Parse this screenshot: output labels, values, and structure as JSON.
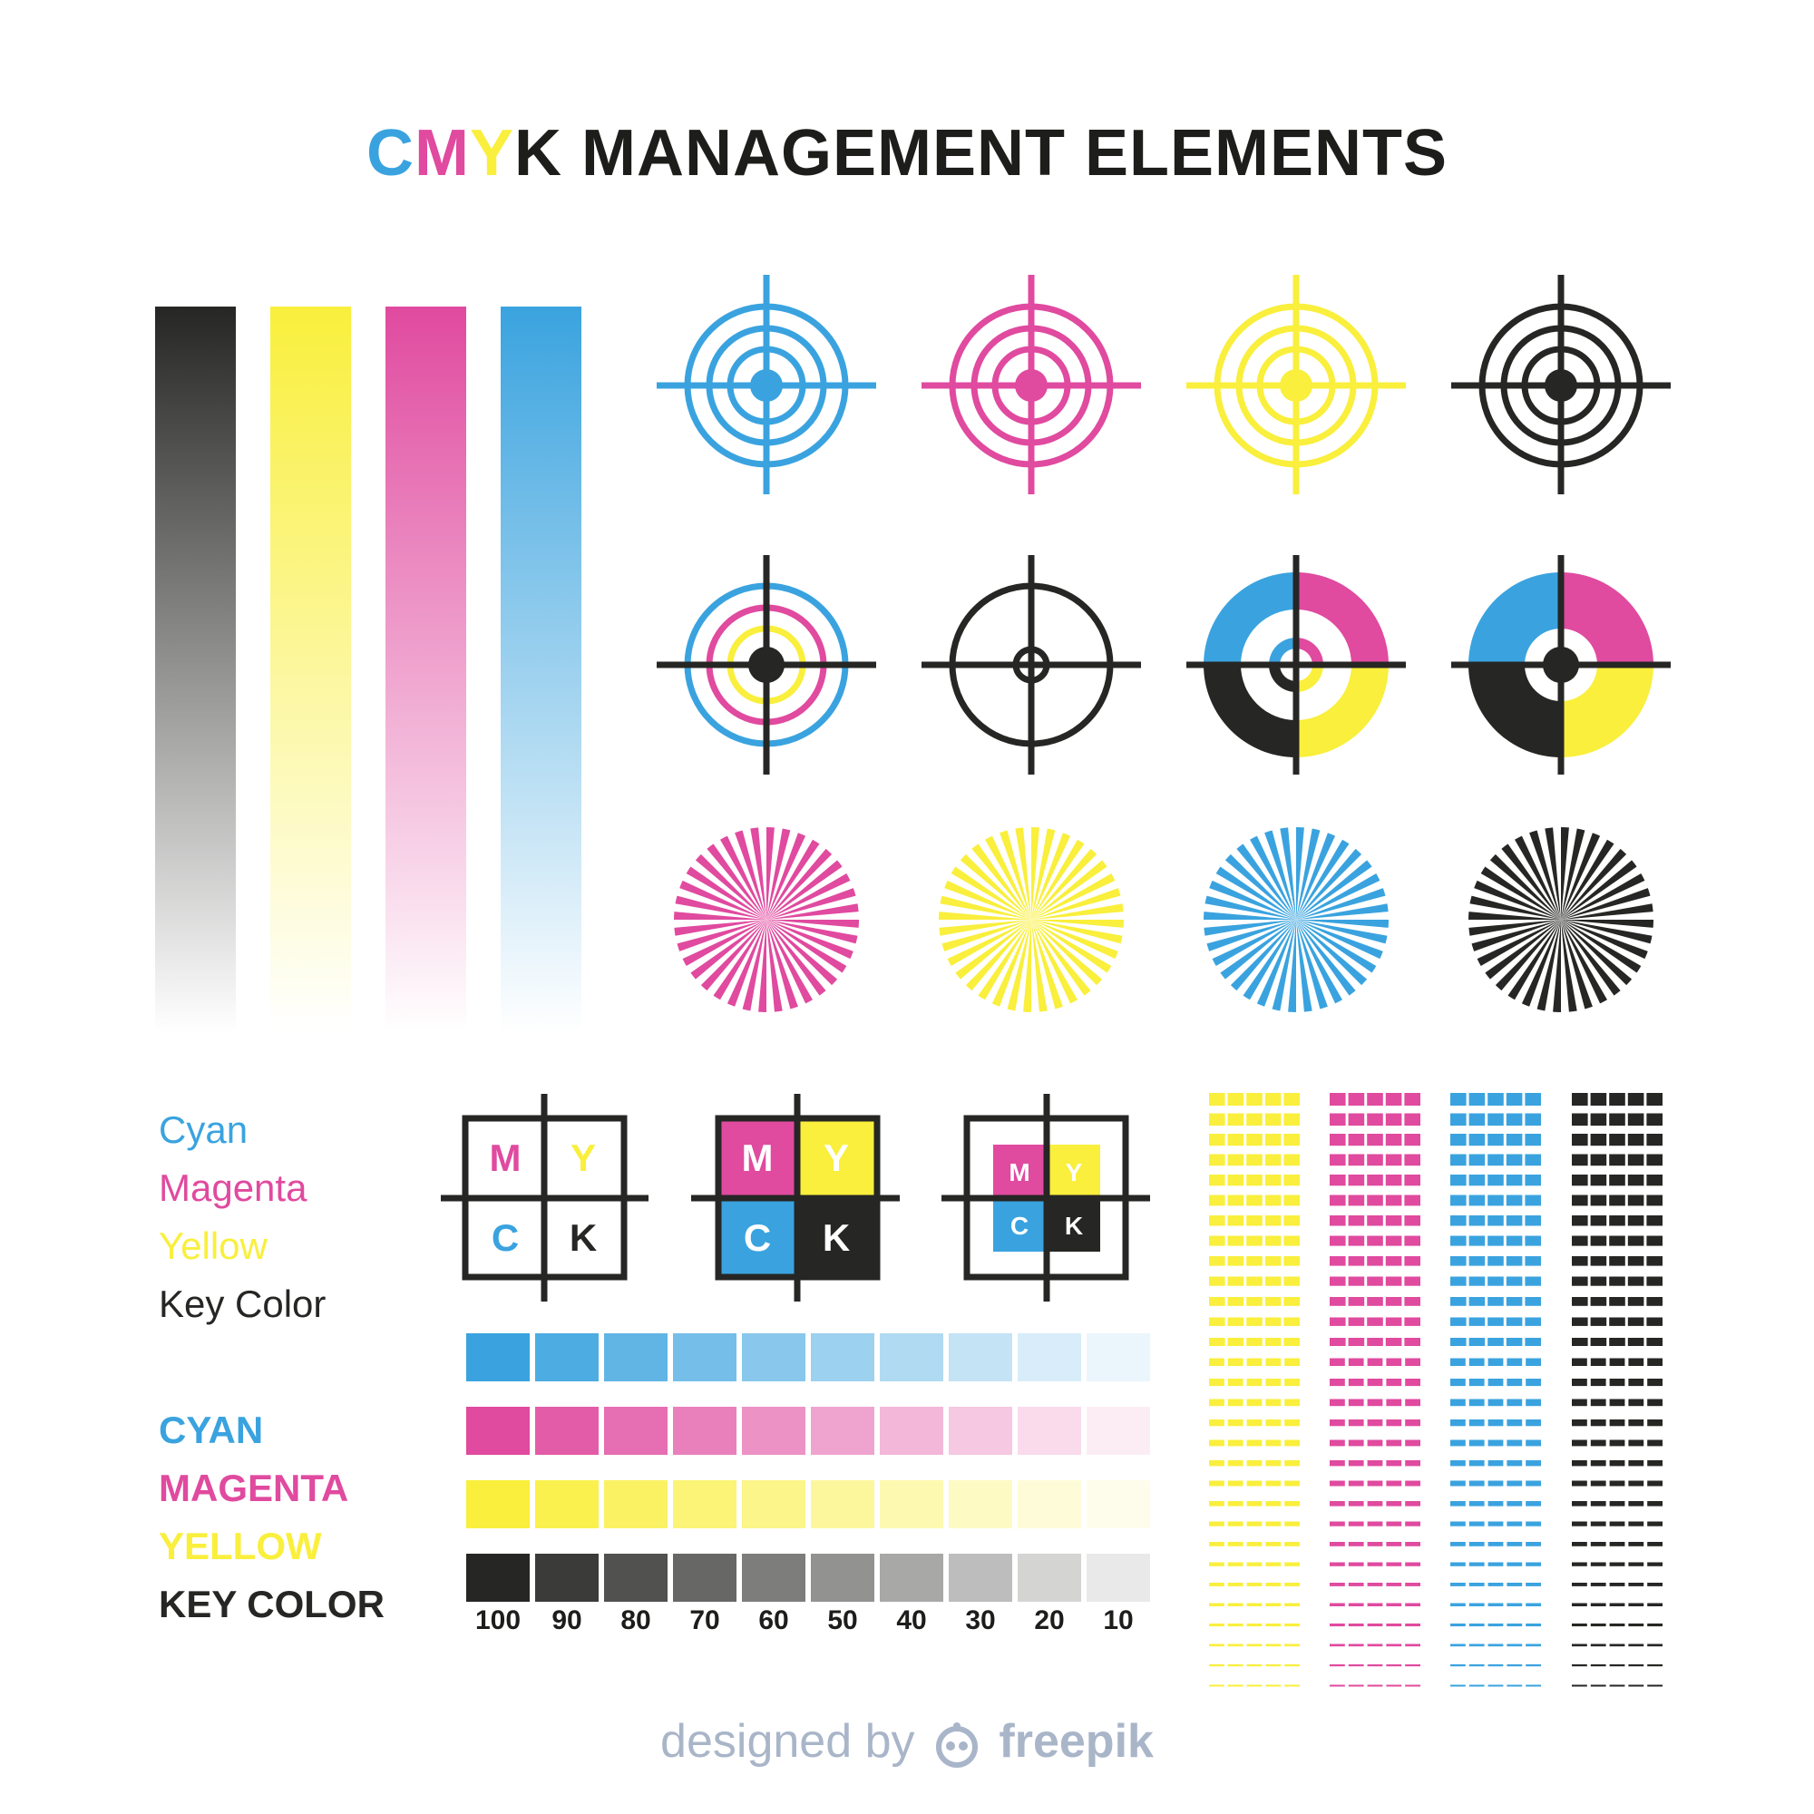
{
  "colors": {
    "cyan": "#3aa3df",
    "magenta": "#e04a9f",
    "yellow": "#f9ef3c",
    "key": "#262624",
    "credit": "#a9b5c8"
  },
  "title": {
    "letter_c": "C",
    "letter_m": "M",
    "letter_y": "Y",
    "rest": "K MANAGEMENT ELEMENTS"
  },
  "gradient_bars": [
    "key",
    "yellow",
    "magenta",
    "cyan"
  ],
  "targets_row1": [
    "cyan",
    "magenta",
    "yellow",
    "key"
  ],
  "sunbursts": [
    "magenta",
    "yellow",
    "cyan",
    "key"
  ],
  "labels_small": [
    "Cyan",
    "Magenta",
    "Yellow",
    "Key Color"
  ],
  "labels_big": [
    "CYAN",
    "MAGENTA",
    "YELLOW",
    "KEY COLOR"
  ],
  "registration_boxes": {
    "letters": [
      "M",
      "Y",
      "C",
      "K"
    ]
  },
  "tint_scale": {
    "rows": [
      "cyan",
      "magenta",
      "yellow",
      "key"
    ],
    "percents": [
      "100",
      "90",
      "80",
      "70",
      "60",
      "50",
      "40",
      "30",
      "20",
      "10"
    ]
  },
  "line_patches": [
    "yellow",
    "magenta",
    "cyan",
    "key"
  ],
  "credit": {
    "prefix": "designed by",
    "brand": "freepik"
  }
}
